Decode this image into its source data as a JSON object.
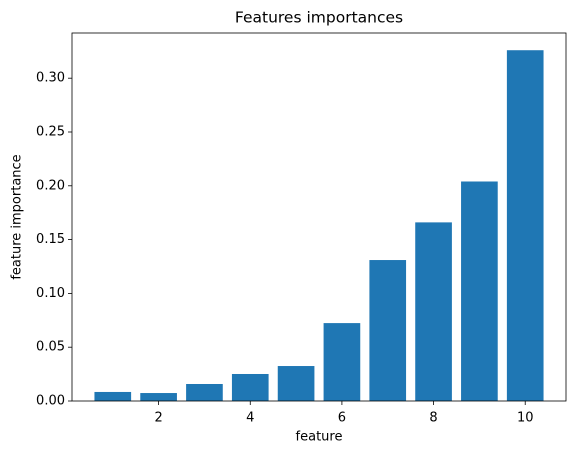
{
  "chart_data": {
    "type": "bar",
    "title": "Features importances",
    "x_label": "feature",
    "y_label": "feature importance",
    "x": [
      1,
      2,
      3,
      4,
      5,
      6,
      7,
      8,
      9,
      10
    ],
    "values": [
      0.0084,
      0.0074,
      0.0158,
      0.0251,
      0.0325,
      0.0724,
      0.131,
      0.166,
      0.204,
      0.326
    ],
    "bar_width": 0.8,
    "color": "#1f77b4",
    "xlim": [
      0.11,
      10.89
    ],
    "xticks": [
      2,
      4,
      6,
      8,
      10
    ],
    "ylim": [
      0,
      0.342
    ],
    "yticks": [
      {
        "value": 0,
        "label": "0.00"
      },
      {
        "value": 0.05,
        "label": "0.05"
      },
      {
        "value": 0.1,
        "label": "0.10"
      },
      {
        "value": 0.15,
        "label": "0.15"
      },
      {
        "value": 0.2,
        "label": "0.20"
      },
      {
        "value": 0.25,
        "label": "0.25"
      },
      {
        "value": 0.3,
        "label": "0.30"
      }
    ],
    "grid": false
  }
}
